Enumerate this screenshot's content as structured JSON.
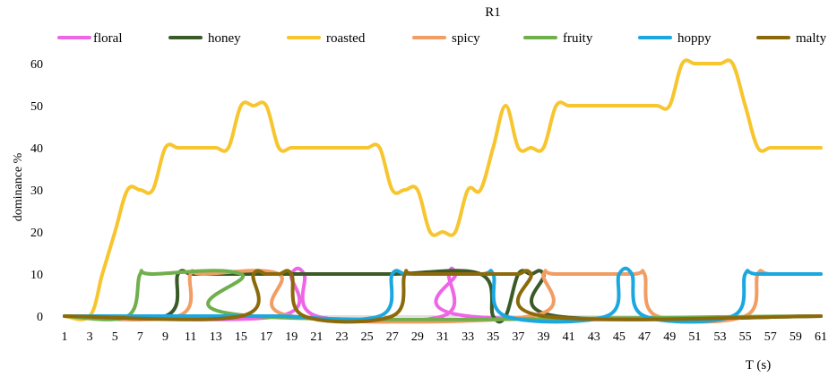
{
  "chart_data": {
    "type": "line",
    "title": "R1",
    "xlabel": "T (s)",
    "ylabel": "dominance %",
    "xlim": [
      1,
      61
    ],
    "ylim": [
      0,
      60
    ],
    "x_ticks": [
      1,
      3,
      5,
      7,
      9,
      11,
      13,
      15,
      17,
      19,
      21,
      23,
      25,
      27,
      29,
      31,
      33,
      35,
      37,
      39,
      41,
      43,
      45,
      47,
      49,
      51,
      53,
      55,
      57,
      59,
      61
    ],
    "y_ticks": [
      0,
      10,
      20,
      30,
      40,
      50,
      60
    ],
    "grid": false,
    "legend_position": "top",
    "series": [
      {
        "name": "floral",
        "color": "#EE66E6",
        "points": [
          [
            1,
            0
          ],
          [
            18,
            0
          ],
          [
            19,
            10
          ],
          [
            20,
            10
          ],
          [
            21,
            0
          ],
          [
            31,
            0
          ],
          [
            31.5,
            10
          ],
          [
            32,
            10
          ],
          [
            33,
            0
          ],
          [
            61,
            0
          ]
        ]
      },
      {
        "name": "honey",
        "color": "#3A5A28",
        "points": [
          [
            1,
            0
          ],
          [
            9,
            0
          ],
          [
            10,
            10
          ],
          [
            11,
            10
          ],
          [
            12,
            10
          ],
          [
            19,
            10
          ],
          [
            20,
            10
          ],
          [
            21,
            10
          ],
          [
            27,
            10
          ],
          [
            34,
            10
          ],
          [
            35,
            0
          ],
          [
            36,
            0
          ],
          [
            37,
            10
          ],
          [
            38,
            10
          ],
          [
            39,
            10
          ],
          [
            40,
            0
          ],
          [
            61,
            0
          ]
        ]
      },
      {
        "name": "roasted",
        "color": "#F7C52E",
        "points": [
          [
            1,
            0
          ],
          [
            3,
            0
          ],
          [
            4,
            10
          ],
          [
            5,
            20
          ],
          [
            6,
            30
          ],
          [
            7,
            30
          ],
          [
            8,
            30
          ],
          [
            9,
            40
          ],
          [
            10,
            40
          ],
          [
            11,
            40
          ],
          [
            12,
            40
          ],
          [
            13,
            40
          ],
          [
            14,
            40
          ],
          [
            15,
            50
          ],
          [
            16,
            50
          ],
          [
            17,
            50
          ],
          [
            18,
            40
          ],
          [
            19,
            40
          ],
          [
            20,
            40
          ],
          [
            21,
            40
          ],
          [
            22,
            40
          ],
          [
            23,
            40
          ],
          [
            24,
            40
          ],
          [
            25,
            40
          ],
          [
            26,
            40
          ],
          [
            27,
            30
          ],
          [
            28,
            30
          ],
          [
            29,
            30
          ],
          [
            30,
            20
          ],
          [
            31,
            20
          ],
          [
            32,
            20
          ],
          [
            33,
            30
          ],
          [
            34,
            30
          ],
          [
            35,
            40
          ],
          [
            36,
            50
          ],
          [
            37,
            40
          ],
          [
            38,
            40
          ],
          [
            39,
            40
          ],
          [
            40,
            50
          ],
          [
            41,
            50
          ],
          [
            42,
            50
          ],
          [
            43,
            50
          ],
          [
            44,
            50
          ],
          [
            45,
            50
          ],
          [
            46,
            50
          ],
          [
            47,
            50
          ],
          [
            48,
            50
          ],
          [
            49,
            50
          ],
          [
            50,
            60
          ],
          [
            51,
            60
          ],
          [
            52,
            60
          ],
          [
            53,
            60
          ],
          [
            54,
            60
          ],
          [
            55,
            50
          ],
          [
            56,
            40
          ],
          [
            57,
            40
          ],
          [
            58,
            40
          ],
          [
            59,
            40
          ],
          [
            60,
            40
          ],
          [
            61,
            40
          ]
        ]
      },
      {
        "name": "spicy",
        "color": "#F29D64",
        "points": [
          [
            1,
            0
          ],
          [
            10,
            0
          ],
          [
            11,
            10
          ],
          [
            12,
            10
          ],
          [
            18,
            10
          ],
          [
            19,
            0
          ],
          [
            38,
            0
          ],
          [
            39,
            10
          ],
          [
            40,
            10
          ],
          [
            46,
            10
          ],
          [
            47,
            10
          ],
          [
            48,
            0
          ],
          [
            55,
            0
          ],
          [
            56,
            10
          ],
          [
            57,
            10
          ],
          [
            61,
            10
          ]
        ]
      },
      {
        "name": "fruity",
        "color": "#6FAF4C",
        "points": [
          [
            1,
            0
          ],
          [
            6,
            0
          ],
          [
            7,
            10
          ],
          [
            8,
            10
          ],
          [
            15,
            10
          ],
          [
            16,
            0
          ],
          [
            61,
            0
          ]
        ]
      },
      {
        "name": "hoppy",
        "color": "#1BA7E0",
        "points": [
          [
            1,
            0
          ],
          [
            14,
            0
          ],
          [
            18,
            0
          ],
          [
            26,
            0
          ],
          [
            27,
            10
          ],
          [
            28,
            10
          ],
          [
            29,
            10
          ],
          [
            34,
            10
          ],
          [
            35,
            10
          ],
          [
            36,
            0
          ],
          [
            44,
            0
          ],
          [
            45,
            10
          ],
          [
            46,
            10
          ],
          [
            47,
            0
          ],
          [
            54,
            0
          ],
          [
            55,
            10
          ],
          [
            56,
            10
          ],
          [
            61,
            10
          ]
        ]
      },
      {
        "name": "malty",
        "color": "#8C6A0A",
        "points": [
          [
            1,
            0
          ],
          [
            15,
            0
          ],
          [
            16,
            10
          ],
          [
            17,
            10
          ],
          [
            18,
            10
          ],
          [
            19,
            10
          ],
          [
            20,
            0
          ],
          [
            27,
            0
          ],
          [
            28,
            10
          ],
          [
            29,
            10
          ],
          [
            36,
            10
          ],
          [
            37,
            10
          ],
          [
            38,
            10
          ],
          [
            39,
            0
          ],
          [
            61,
            0
          ]
        ]
      }
    ]
  }
}
